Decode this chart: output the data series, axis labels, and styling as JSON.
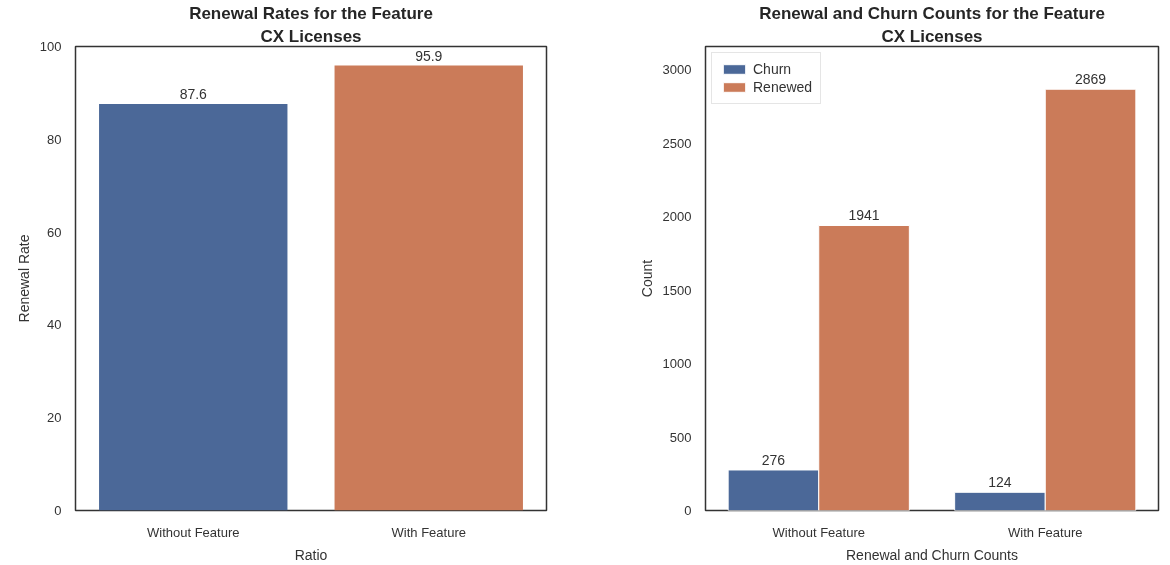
{
  "chart_data": [
    {
      "type": "bar",
      "title": "Renewal Rates for the Feature",
      "subtitle": "CX Licenses",
      "categories": [
        "Without Feature",
        "With Feature"
      ],
      "values": [
        87.6,
        95.9
      ],
      "colors": [
        "#4b6898",
        "#cb7b59"
      ],
      "xlabel": "Ratio",
      "ylabel": "Renewal Rate",
      "ylim": [
        0,
        100
      ],
      "yticks": [
        0,
        20,
        40,
        60,
        80,
        100
      ],
      "data_labels": true
    },
    {
      "type": "bar",
      "title": "Renewal and Churn Counts for the Feature",
      "subtitle": "CX Licenses",
      "categories": [
        "Without Feature",
        "With Feature"
      ],
      "series": [
        {
          "name": "Churn",
          "color": "#4b6898",
          "values": [
            276,
            124
          ]
        },
        {
          "name": "Renewed",
          "color": "#cb7b59",
          "values": [
            1941,
            2869
          ]
        }
      ],
      "xlabel": "Renewal and Churn Counts",
      "ylabel": "Count",
      "ylim": [
        0,
        3160
      ],
      "yticks": [
        0,
        500,
        1000,
        1500,
        2000,
        2500,
        3000
      ],
      "data_labels": true,
      "legend": "top left"
    }
  ]
}
